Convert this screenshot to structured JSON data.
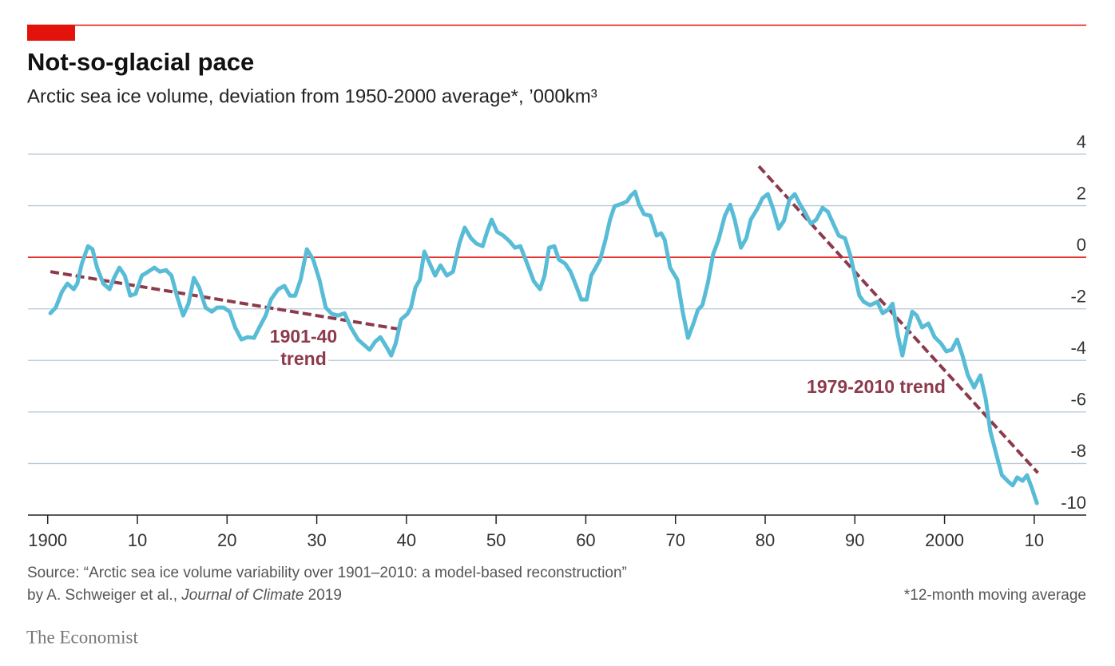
{
  "chart_data": {
    "type": "line",
    "title": "Not-so-glacial pace",
    "subtitle": "Arctic sea ice volume, deviation from 1950-2000 average*, ’000km³",
    "source_lines": [
      "Source: “Arctic sea ice volume variability over 1901–2010: a model-based reconstruction”",
      "by A. Schweiger et al., ",
      "Journal of Climate",
      " 2019"
    ],
    "footnote": "*12-month moving average",
    "brand": "The Economist",
    "xlim": [
      1897.8,
      2015.8
    ],
    "ylim": [
      -10,
      4
    ],
    "xticks": [
      1900,
      {
        "value": 1910,
        "label": "10"
      },
      {
        "value": 1920,
        "label": "20"
      },
      {
        "value": 1930,
        "label": "30"
      },
      {
        "value": 1940,
        "label": "40"
      },
      {
        "value": 1950,
        "label": "50"
      },
      {
        "value": 1960,
        "label": "60"
      },
      {
        "value": 1970,
        "label": "70"
      },
      {
        "value": 1980,
        "label": "80"
      },
      {
        "value": 1990,
        "label": "90"
      },
      2000,
      {
        "value": 2010,
        "label": "10"
      }
    ],
    "yticks": [
      -10,
      -8,
      -6,
      -4,
      -2,
      0,
      2,
      4
    ],
    "grid": true,
    "grid_color": "#b9c9d8",
    "zero_line_color": "#e3120b",
    "series": [
      {
        "color": "#59bcd6",
        "x": [
          1900.3,
          1900.9,
          1901.6,
          1902.2,
          1902.9,
          1903.3,
          1903.8,
          1904.5,
          1905.0,
          1905.5,
          1906.2,
          1906.9,
          1907.4,
          1908.0,
          1908.6,
          1909.2,
          1909.8,
          1910.5,
          1911.2,
          1911.9,
          1912.5,
          1913.2,
          1913.8,
          1914.4,
          1915.1,
          1915.7,
          1916.3,
          1916.9,
          1917.6,
          1918.3,
          1918.9,
          1919.6,
          1920.3,
          1920.9,
          1921.6,
          1922.3,
          1923.0,
          1923.6,
          1924.3,
          1924.9,
          1925.7,
          1926.4,
          1927.0,
          1927.6,
          1928.2,
          1928.9,
          1929.6,
          1930.3,
          1931.0,
          1931.7,
          1932.4,
          1933.1,
          1933.8,
          1934.6,
          1935.3,
          1935.9,
          1936.5,
          1937.1,
          1937.8,
          1938.3,
          1938.8,
          1939.4,
          1940.1,
          1940.5,
          1941.0,
          1941.5,
          1942.0,
          1942.6,
          1943.2,
          1943.8,
          1944.5,
          1945.2,
          1945.9,
          1946.5,
          1947.2,
          1947.8,
          1948.5,
          1949.0,
          1949.5,
          1950.1,
          1950.8,
          1951.5,
          1952.1,
          1952.7,
          1953.4,
          1954.2,
          1954.9,
          1955.4,
          1955.9,
          1956.5,
          1957.0,
          1957.7,
          1958.3,
          1959.0,
          1959.5,
          1960.1,
          1960.6,
          1961.1,
          1961.6,
          1962.2,
          1962.7,
          1963.2,
          1964.0,
          1964.6,
          1965.0,
          1965.5,
          1965.9,
          1966.5,
          1967.2,
          1967.9,
          1968.4,
          1968.8,
          1969.4,
          1970.2,
          1970.8,
          1971.4,
          1972.0,
          1972.5,
          1973.0,
          1973.6,
          1974.2,
          1974.8,
          1975.5,
          1976.1,
          1976.6,
          1977.3,
          1977.9,
          1978.4,
          1979.1,
          1979.7,
          1980.3,
          1980.9,
          1981.5,
          1982.1,
          1982.7,
          1983.3,
          1983.9,
          1984.4,
          1985.1,
          1985.7,
          1986.4,
          1987.0,
          1987.6,
          1988.2,
          1988.9,
          1989.5,
          1990.0,
          1990.5,
          1991.0,
          1991.7,
          1992.5,
          1993.1,
          1993.7,
          1994.2,
          1994.8,
          1995.3,
          1995.8,
          1996.4,
          1996.9,
          1997.5,
          1998.2,
          1998.9,
          1999.6,
          2000.2,
          2000.8,
          2001.4,
          2002.0,
          2002.6,
          2003.3,
          2004.0,
          2004.6,
          2005.1,
          2005.8,
          2006.4,
          2007.1,
          2007.6,
          2008.1,
          2008.7,
          2009.2,
          2009.7,
          2010.3
        ],
        "values": [
          -2.17,
          -1.95,
          -1.33,
          -1.02,
          -1.24,
          -1.02,
          -0.25,
          0.43,
          0.31,
          -0.4,
          -1.02,
          -1.24,
          -0.8,
          -0.4,
          -0.71,
          -1.49,
          -1.42,
          -0.71,
          -0.56,
          -0.4,
          -0.56,
          -0.5,
          -0.71,
          -1.49,
          -2.26,
          -1.8,
          -0.8,
          -1.18,
          -1.95,
          -2.11,
          -1.95,
          -1.95,
          -2.11,
          -2.72,
          -3.19,
          -3.1,
          -3.13,
          -2.72,
          -2.26,
          -1.64,
          -1.24,
          -1.11,
          -1.49,
          -1.49,
          -0.87,
          0.31,
          -0.09,
          -0.87,
          -1.95,
          -2.2,
          -2.26,
          -2.17,
          -2.72,
          -3.19,
          -3.41,
          -3.59,
          -3.28,
          -3.1,
          -3.5,
          -3.81,
          -3.34,
          -2.41,
          -2.2,
          -1.95,
          -1.18,
          -0.87,
          0.22,
          -0.25,
          -0.71,
          -0.31,
          -0.71,
          -0.56,
          0.53,
          1.15,
          0.74,
          0.53,
          0.43,
          0.99,
          1.46,
          0.99,
          0.84,
          0.62,
          0.37,
          0.43,
          -0.19,
          -0.93,
          -1.24,
          -0.71,
          0.37,
          0.43,
          -0.09,
          -0.25,
          -0.56,
          -1.18,
          -1.64,
          -1.64,
          -0.71,
          -0.4,
          -0.09,
          0.68,
          1.46,
          1.98,
          2.07,
          2.17,
          2.38,
          2.54,
          2.07,
          1.67,
          1.61,
          0.84,
          0.93,
          0.68,
          -0.4,
          -0.87,
          -2.11,
          -3.13,
          -2.57,
          -2.04,
          -1.86,
          -1.02,
          0.12,
          0.68,
          1.61,
          2.04,
          1.46,
          0.37,
          0.74,
          1.46,
          1.86,
          2.29,
          2.45,
          1.86,
          1.11,
          1.42,
          2.23,
          2.45,
          2.04,
          1.76,
          1.3,
          1.46,
          1.92,
          1.76,
          1.3,
          0.84,
          0.74,
          0.06,
          -0.71,
          -1.49,
          -1.73,
          -1.86,
          -1.73,
          -2.17,
          -2.04,
          -1.8,
          -3.03,
          -3.81,
          -2.97,
          -2.11,
          -2.26,
          -2.72,
          -2.57,
          -3.1,
          -3.34,
          -3.65,
          -3.59,
          -3.19,
          -3.81,
          -4.58,
          -5.05,
          -4.58,
          -5.51,
          -6.75,
          -7.68,
          -8.45,
          -8.7,
          -8.85,
          -8.54,
          -8.67,
          -8.45,
          -8.92,
          -9.54
        ]
      }
    ],
    "trend_lines": [
      {
        "label_lines": [
          "1901-40",
          "trend"
        ],
        "color": "#8c3a4c",
        "x": [
          1900.3,
          1939.2
        ],
        "values": [
          -0.56,
          -2.79
        ]
      },
      {
        "label_lines": [
          "1979-2010 trend"
        ],
        "color": "#8c3a4c",
        "x": [
          1979.3,
          2010.4
        ],
        "values": [
          3.53,
          -8.36
        ]
      }
    ]
  }
}
